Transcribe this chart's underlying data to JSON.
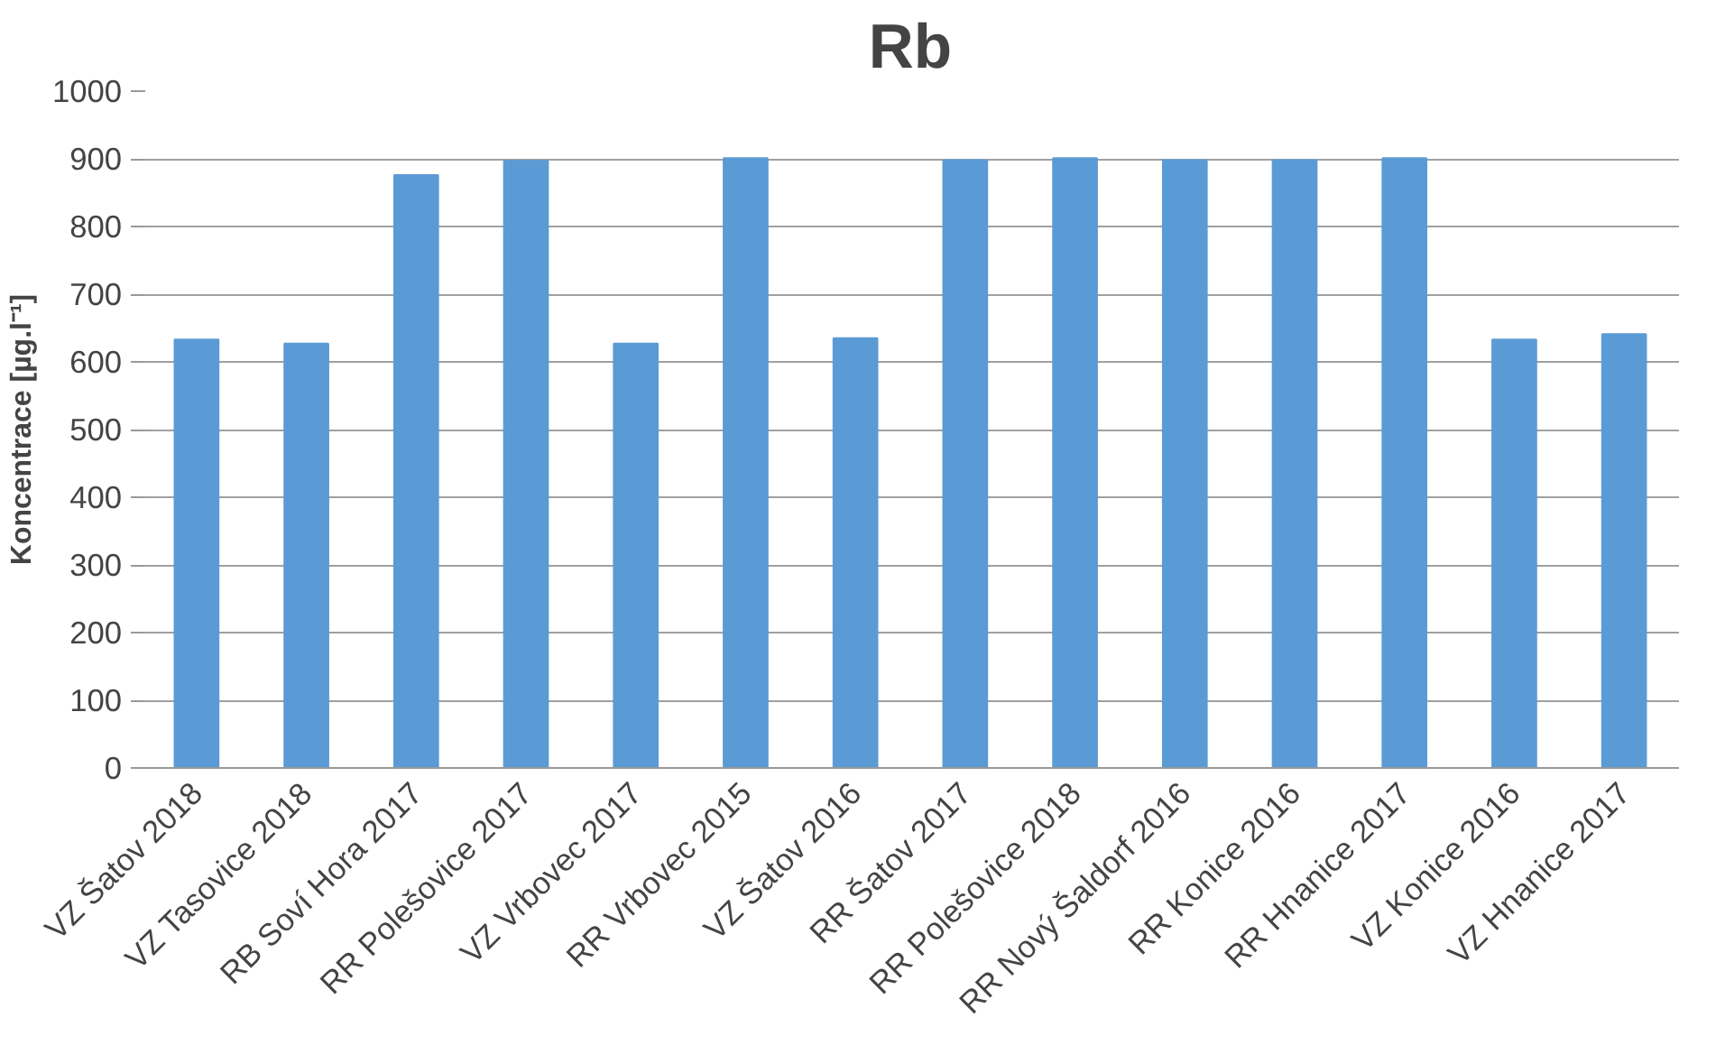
{
  "chart_data": {
    "type": "bar",
    "title": "Rb",
    "ylabel": "Koncentrace [µg.l⁻¹]",
    "categories": [
      "VZ Šatov 2018",
      "VZ Tasovice 2018",
      "RB Soví Hora 2017",
      "RR Polešovice 2017",
      "VZ Vrbovec 2017",
      "RR Vrbovec 2015",
      "VZ Šatov 2016",
      "RR Šatov 2017",
      "RR Polešovice 2018",
      "RR Nový Šaldorf 2016",
      "RR Konice 2016",
      "RR Hnanice 2017",
      "VZ Konice 2016",
      "VZ Hnanice 2017"
    ],
    "values": [
      633,
      627,
      876,
      897,
      627,
      901,
      635,
      898,
      901,
      898,
      898,
      901,
      633,
      641
    ],
    "color": "#5b9bd5",
    "ylim": [
      0,
      1000
    ],
    "yticks": [
      0,
      100,
      200,
      300,
      400,
      500,
      600,
      700,
      800,
      900,
      1000
    ],
    "grid": "y"
  }
}
